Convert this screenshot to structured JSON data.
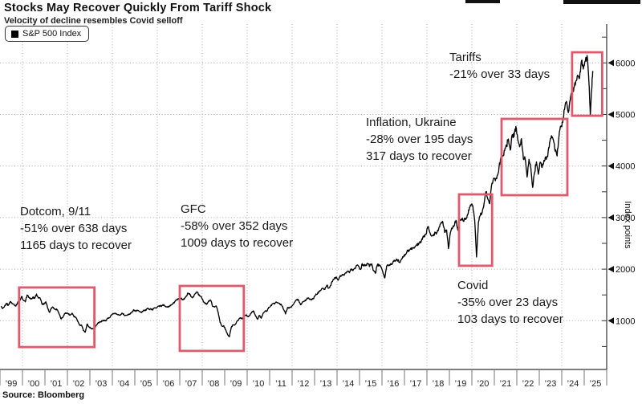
{
  "source": "Source: Bloomberg",
  "colors": {
    "line": "#000000",
    "highlight": "#e05a6e",
    "grid": "#a9a9a9",
    "axis": "#333333",
    "text": "#1a1a1a"
  },
  "chart_data": {
    "type": "line",
    "title": "Stocks May Recover Quickly From Tariff Shock",
    "subtitle": "Velocity of decline resembles Covid selloff",
    "legend_label": "S&P 500 Index",
    "legend_position": "top-left",
    "ylabel": "Index points",
    "xlabel": "",
    "grid": "dotted",
    "x_range": [
      1999,
      2026
    ],
    "y_range": [
      0,
      6750
    ],
    "y_ticks": [
      1000,
      2000,
      3000,
      4000,
      5000,
      6000
    ],
    "y_minor_step": 500,
    "x_gridline_years": [
      2000,
      2002,
      2004,
      2006,
      2008,
      2010,
      2012,
      2014,
      2016,
      2018,
      2020,
      2022,
      2024
    ],
    "x_tick_labels": [
      "’99",
      "’00",
      "’01",
      "’02",
      "’03",
      "’04",
      "’05",
      "’06",
      "’07",
      "’08",
      "’09",
      "’10",
      "’11",
      "’12",
      "’13",
      "’14",
      "’15",
      "’16",
      "’17",
      "’18",
      "’19",
      "’20",
      "’21",
      "’22",
      "’23",
      "’24",
      "’25"
    ],
    "annotations": {
      "dotcom": [
        "Dotcom, 9/11",
        "-51% over 638 days",
        "1165 days to recover"
      ],
      "gfc": [
        "GFC",
        "-58% over 352 days",
        "1009 days to recover"
      ],
      "covid": [
        "Covid",
        "-35% over 23 days",
        "103 days to recover"
      ],
      "inflation": [
        "Inflation, Ukraine",
        "-28% over 195 days",
        "317 days to recover"
      ],
      "tariffs": [
        "Tariffs",
        "-21% over 33 days"
      ]
    },
    "highlights": [
      {
        "id": "dotcom",
        "t": [
          1999.85,
          2003.2
        ],
        "v": [
          490,
          1645
        ]
      },
      {
        "id": "gfc",
        "t": [
          2007.0,
          2009.85
        ],
        "v": [
          415,
          1675
        ]
      },
      {
        "id": "covid",
        "t": [
          2019.43,
          2020.9
        ],
        "v": [
          2065,
          3450
        ]
      },
      {
        "id": "inflation",
        "t": [
          2021.32,
          2024.25
        ],
        "v": [
          3435,
          4915
        ]
      },
      {
        "id": "tariffs",
        "t": [
          2024.46,
          2025.8
        ],
        "v": [
          4975,
          6205
        ]
      }
    ],
    "series": [
      {
        "name": "S&P 500 Index",
        "monthly_start_year": 1999,
        "monthly_values": [
          1280,
          1238,
          1286,
          1335,
          1302,
          1373,
          1329,
          1320,
          1283,
          1363,
          1389,
          1469,
          1394,
          1366,
          1499,
          1452,
          1421,
          1455,
          1431,
          1518,
          1437,
          1429,
          1315,
          1320,
          1366,
          1240,
          1160,
          1249,
          1256,
          1224,
          1211,
          1134,
          1041,
          1060,
          1139,
          1148,
          1130,
          1107,
          1147,
          1077,
          1067,
          990,
          912,
          916,
          815,
          777,
          936,
          880,
          856,
          841,
          848,
          917,
          964,
          975,
          990,
          1008,
          996,
          1051,
          1058,
          1112,
          1131,
          1145,
          1126,
          1107,
          1121,
          1141,
          1102,
          1104,
          1115,
          1130,
          1174,
          1212,
          1181,
          1204,
          1181,
          1157,
          1192,
          1191,
          1234,
          1220,
          1229,
          1207,
          1249,
          1248,
          1280,
          1281,
          1295,
          1311,
          1270,
          1270,
          1277,
          1304,
          1336,
          1378,
          1401,
          1418,
          1438,
          1407,
          1421,
          1482,
          1531,
          1503,
          1455,
          1474,
          1527,
          1549,
          1481,
          1468,
          1379,
          1331,
          1323,
          1386,
          1400,
          1280,
          1267,
          1283,
          1166,
          969,
          896,
          903,
          826,
          735,
          690,
          873,
          919,
          919,
          987,
          1021,
          1057,
          1036,
          1096,
          1115,
          1074,
          1104,
          1169,
          1187,
          1089,
          1031,
          1102,
          1049,
          1141,
          1183,
          1181,
          1258,
          1286,
          1327,
          1326,
          1364,
          1345,
          1321,
          1292,
          1219,
          1131,
          1253,
          1247,
          1258,
          1312,
          1366,
          1408,
          1398,
          1310,
          1362,
          1379,
          1407,
          1441,
          1412,
          1416,
          1426,
          1498,
          1515,
          1569,
          1598,
          1631,
          1606,
          1686,
          1633,
          1682,
          1757,
          1806,
          1848,
          1783,
          1859,
          1872,
          1884,
          1924,
          1960,
          1931,
          2003,
          1972,
          2018,
          2068,
          2059,
          1995,
          2105,
          2068,
          2086,
          2107,
          2063,
          2104,
          1972,
          1920,
          2079,
          2080,
          2044,
          1940,
          1829,
          2060,
          2065,
          2097,
          2099,
          2174,
          2171,
          2168,
          2126,
          2199,
          2239,
          2279,
          2364,
          2363,
          2384,
          2412,
          2423,
          2470,
          2472,
          2519,
          2575,
          2648,
          2674,
          2824,
          2714,
          2641,
          2648,
          2705,
          2718,
          2816,
          2902,
          2914,
          2712,
          2760,
          2400,
          2704,
          2784,
          2834,
          2946,
          2752,
          2942,
          2980,
          2926,
          2977,
          3038,
          3141,
          3231,
          3226,
          2954,
          2237,
          2912,
          3044,
          3100,
          3271,
          3500,
          3363,
          3270,
          3622,
          3756,
          3714,
          3811,
          3973,
          4181,
          4204,
          4298,
          4395,
          4523,
          4308,
          4605,
          4567,
          4766,
          4516,
          4374,
          4530,
          4132,
          4132,
          3785,
          4130,
          3955,
          3586,
          3872,
          4080,
          3840,
          4077,
          3970,
          4109,
          4169,
          4180,
          4450,
          4589,
          4508,
          4288,
          4194,
          4568,
          4770,
          4846,
          5096,
          5254,
          5036,
          5278,
          5460,
          5522,
          5648,
          5762,
          5705,
          6032,
          5882
        ],
        "extra_points": [
          [
            2025.05,
            6041
          ],
          [
            2025.13,
            6144
          ],
          [
            2025.21,
            5612
          ],
          [
            2025.27,
            4983
          ],
          [
            2025.33,
            5461
          ],
          [
            2025.38,
            5845
          ]
        ]
      }
    ]
  }
}
